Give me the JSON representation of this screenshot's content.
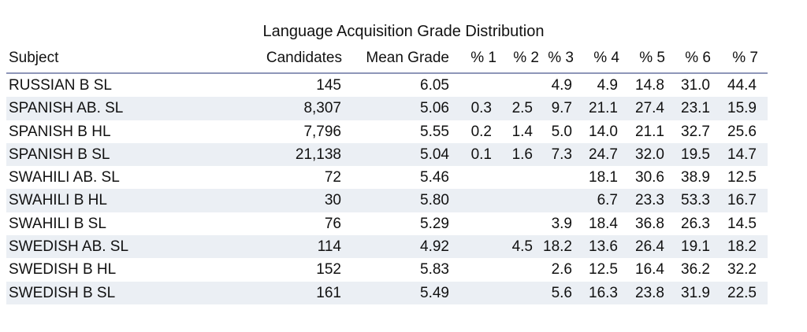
{
  "title": "Language Acquisition Grade Distribution",
  "columns": [
    "Subject",
    "Candidates",
    "Mean Grade",
    "% 1",
    "% 2",
    "% 3",
    "% 4",
    "% 5",
    "% 6",
    "% 7"
  ],
  "rows": [
    {
      "subject": "RUSSIAN B SL",
      "candidates": "145",
      "mean": "6.05",
      "p1": "",
      "p2": "",
      "p3": "4.9",
      "p4": "4.9",
      "p5": "14.8",
      "p6": "31.0",
      "p7": "44.4"
    },
    {
      "subject": "SPANISH AB. SL",
      "candidates": "8,307",
      "mean": "5.06",
      "p1": "0.3",
      "p2": "2.5",
      "p3": "9.7",
      "p4": "21.1",
      "p5": "27.4",
      "p6": "23.1",
      "p7": "15.9"
    },
    {
      "subject": "SPANISH B HL",
      "candidates": "7,796",
      "mean": "5.55",
      "p1": "0.2",
      "p2": "1.4",
      "p3": "5.0",
      "p4": "14.0",
      "p5": "21.1",
      "p6": "32.7",
      "p7": "25.6"
    },
    {
      "subject": "SPANISH B SL",
      "candidates": "21,138",
      "mean": "5.04",
      "p1": "0.1",
      "p2": "1.6",
      "p3": "7.3",
      "p4": "24.7",
      "p5": "32.0",
      "p6": "19.5",
      "p7": "14.7"
    },
    {
      "subject": "SWAHILI AB. SL",
      "candidates": "72",
      "mean": "5.46",
      "p1": "",
      "p2": "",
      "p3": "",
      "p4": "18.1",
      "p5": "30.6",
      "p6": "38.9",
      "p7": "12.5"
    },
    {
      "subject": "SWAHILI B HL",
      "candidates": "30",
      "mean": "5.80",
      "p1": "",
      "p2": "",
      "p3": "",
      "p4": "6.7",
      "p5": "23.3",
      "p6": "53.3",
      "p7": "16.7"
    },
    {
      "subject": "SWAHILI B SL",
      "candidates": "76",
      "mean": "5.29",
      "p1": "",
      "p2": "",
      "p3": "3.9",
      "p4": "18.4",
      "p5": "36.8",
      "p6": "26.3",
      "p7": "14.5"
    },
    {
      "subject": "SWEDISH AB. SL",
      "candidates": "114",
      "mean": "4.92",
      "p1": "",
      "p2": "4.5",
      "p3": "18.2",
      "p4": "13.6",
      "p5": "26.4",
      "p6": "19.1",
      "p7": "18.2"
    },
    {
      "subject": "SWEDISH B HL",
      "candidates": "152",
      "mean": "5.83",
      "p1": "",
      "p2": "",
      "p3": "2.6",
      "p4": "12.5",
      "p5": "16.4",
      "p6": "36.2",
      "p7": "32.2"
    },
    {
      "subject": "SWEDISH B SL",
      "candidates": "161",
      "mean": "5.49",
      "p1": "",
      "p2": "",
      "p3": "5.6",
      "p4": "16.3",
      "p5": "23.8",
      "p6": "31.9",
      "p7": "22.5"
    }
  ]
}
